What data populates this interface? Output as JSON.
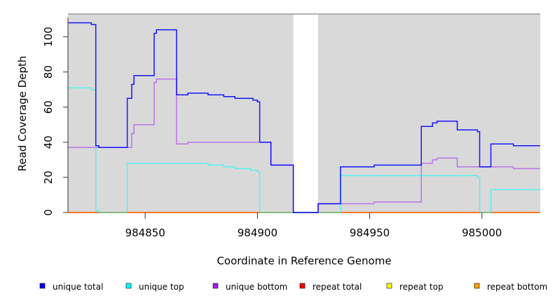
{
  "chart_data": {
    "type": "line",
    "step": true,
    "xlabel": "Coordinate in Reference Genome",
    "ylabel": "Read Coverage Depth",
    "xlim": [
      984815.6,
      985026
    ],
    "ylim": [
      0,
      113
    ],
    "xticks": [
      984850,
      984900,
      984950,
      985000
    ],
    "xtick_labels": [
      "984850",
      "984900",
      "984950",
      "985000"
    ],
    "yticks": [
      0,
      20,
      40,
      60,
      80,
      100
    ],
    "ytick_labels": [
      "0",
      "20",
      "40",
      "60",
      "80",
      "100"
    ],
    "shaded_regions": [
      [
        984815.6,
        984916
      ],
      [
        984927,
        985026
      ]
    ],
    "legend_position": "bottom",
    "series": [
      {
        "name": "unique total",
        "color": "#0000ff",
        "opacity": 0.9,
        "steps": [
          [
            984815.6,
            108
          ],
          [
            984826,
            107
          ],
          [
            984828,
            38
          ],
          [
            984829.4,
            37
          ],
          [
            984842,
            65
          ],
          [
            984844,
            73
          ],
          [
            984845,
            78
          ],
          [
            984854,
            102
          ],
          [
            984855,
            104
          ],
          [
            984864,
            67
          ],
          [
            984869,
            68
          ],
          [
            984878,
            67
          ],
          [
            984885,
            66
          ],
          [
            984890,
            65
          ],
          [
            984898,
            64
          ],
          [
            984900,
            63
          ],
          [
            984901,
            40
          ],
          [
            984906,
            27
          ],
          [
            984916,
            0
          ],
          [
            984927,
            5
          ],
          [
            984937,
            26
          ],
          [
            984952,
            27
          ],
          [
            984973,
            49
          ],
          [
            984978,
            51
          ],
          [
            984980,
            52
          ],
          [
            984989,
            47
          ],
          [
            984998,
            46
          ],
          [
            984999,
            26
          ],
          [
            985004,
            39
          ],
          [
            985014,
            38
          ]
        ]
      },
      {
        "name": "unique top",
        "color": "#00ffff",
        "opacity": 0.6,
        "steps": [
          [
            984815.6,
            71
          ],
          [
            984826,
            70
          ],
          [
            984828,
            1
          ],
          [
            984829.4,
            0
          ],
          [
            984842,
            28
          ],
          [
            984878,
            27
          ],
          [
            984885,
            26
          ],
          [
            984890,
            25
          ],
          [
            984897,
            24
          ],
          [
            984900,
            23
          ],
          [
            984901,
            0
          ],
          [
            984937,
            21
          ],
          [
            984998,
            20
          ],
          [
            984999,
            0
          ],
          [
            985004,
            13
          ]
        ]
      },
      {
        "name": "unique bottom",
        "color": "#a020f0",
        "opacity": 0.55,
        "steps": [
          [
            984815.6,
            37
          ],
          [
            984844,
            45
          ],
          [
            984845,
            50
          ],
          [
            984854,
            74
          ],
          [
            984855,
            76
          ],
          [
            984864,
            39
          ],
          [
            984869,
            40
          ],
          [
            984906,
            27
          ],
          [
            984916,
            0
          ],
          [
            984927,
            5
          ],
          [
            984952,
            6
          ],
          [
            984973,
            28
          ],
          [
            984978,
            30
          ],
          [
            984980,
            31
          ],
          [
            984989,
            26
          ],
          [
            985014,
            25
          ]
        ]
      },
      {
        "name": "repeat total",
        "color": "#ff0000",
        "opacity": 0.6,
        "steps": [
          [
            984815.6,
            0
          ]
        ]
      },
      {
        "name": "repeat top",
        "color": "#ffff00",
        "opacity": 0.6,
        "steps": [
          [
            984815.6,
            0
          ]
        ]
      },
      {
        "name": "repeat bottom",
        "color": "#ffa500",
        "opacity": 0.9,
        "steps": [
          [
            984815.6,
            0
          ]
        ]
      }
    ]
  }
}
